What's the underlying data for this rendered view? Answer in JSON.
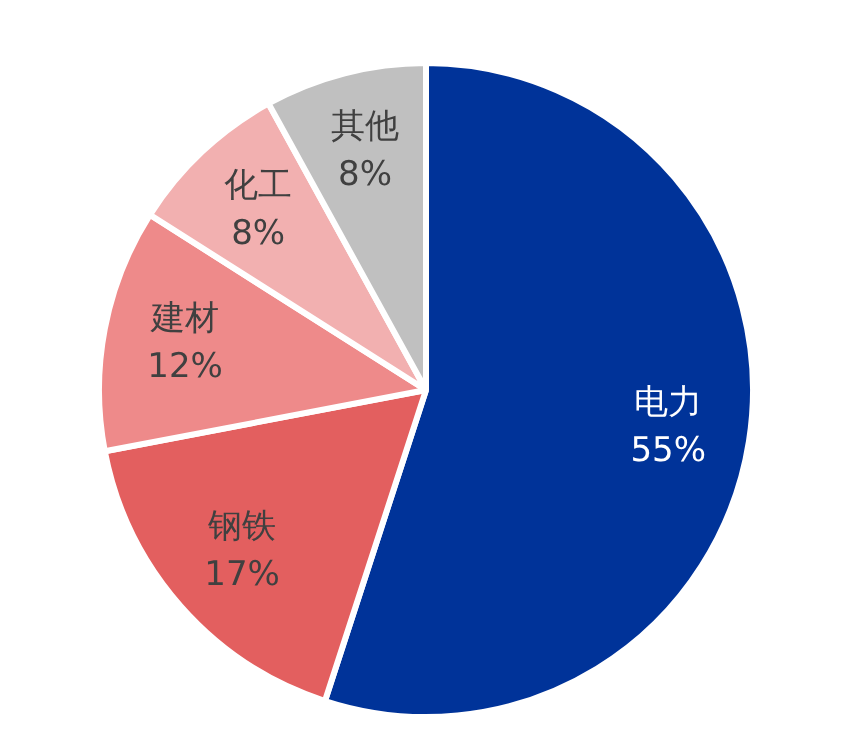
{
  "chart_data": {
    "type": "pie",
    "categories": [
      "电力",
      "钢铁",
      "建材",
      "化工",
      "其他"
    ],
    "values": [
      55,
      17,
      12,
      8,
      8
    ],
    "colors": [
      "#003399",
      "#e35f5f",
      "#ee8a8a",
      "#f2b0b0",
      "#c0c0c0"
    ],
    "value_labels": [
      "55%",
      "17%",
      "12%",
      "8%",
      "8%"
    ],
    "legend": false
  }
}
